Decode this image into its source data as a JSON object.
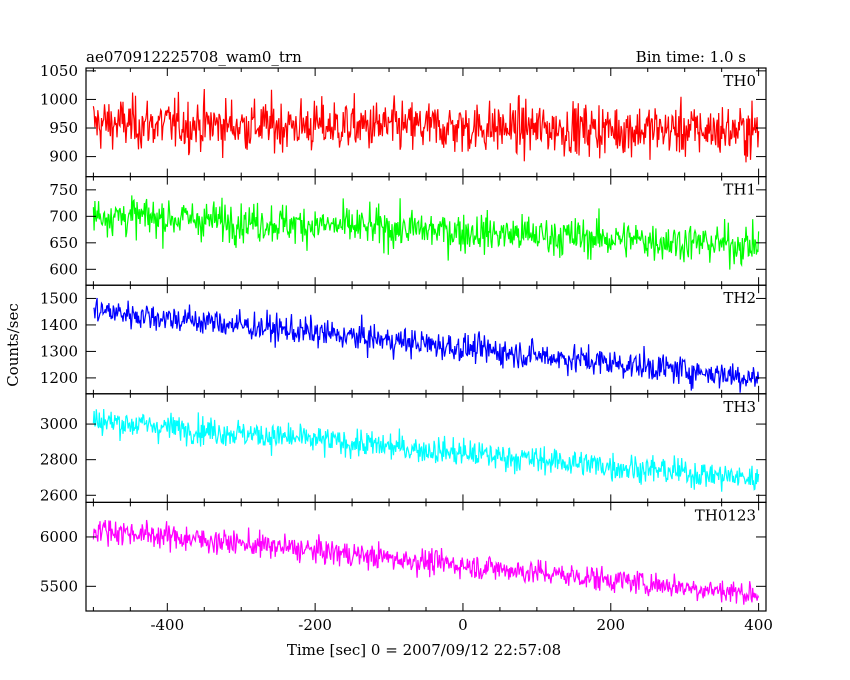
{
  "header": {
    "title": "ae070912225708_wam0_trn",
    "bin_time": "Bin time: 1.0 s"
  },
  "axes": {
    "xlabel": "Time [sec] 0 = 2007/09/12 22:57:08",
    "ylabel": "Counts/sec",
    "xlim": [
      -510,
      410
    ],
    "x_ticks": [
      "-400",
      "-200",
      "0",
      "200",
      "400"
    ]
  },
  "chart_data": {
    "type": "line",
    "title": "ae070912225708_wam0_trn",
    "xlabel": "Time [sec] 0 = 2007/09/12 22:57:08",
    "ylabel": "Counts/sec",
    "bin_time_s": 1.0,
    "x_range": [
      -500,
      400
    ],
    "series": [
      {
        "name": "TH0",
        "color": "#ff0000",
        "ylim": [
          865,
          1055
        ],
        "y_ticks": [
          900,
          950,
          1000,
          1050
        ],
        "trend_start": 958,
        "trend_end": 945,
        "noise_sd": 32
      },
      {
        "name": "TH1",
        "color": "#00ff00",
        "ylim": [
          570,
          775
        ],
        "y_ticks": [
          600,
          650,
          700,
          750
        ],
        "trend_start": 703,
        "trend_end": 645,
        "noise_sd": 26
      },
      {
        "name": "TH2",
        "color": "#0000ff",
        "ylim": [
          1140,
          1550
        ],
        "y_ticks": [
          1200,
          1300,
          1400,
          1500
        ],
        "trend_start": 1455,
        "trend_end": 1200,
        "noise_sd": 38
      },
      {
        "name": "TH3",
        "color": "#00ffff",
        "ylim": [
          2560,
          3170
        ],
        "y_ticks": [
          2600,
          2800,
          3000
        ],
        "trend_start": 3020,
        "trend_end": 2690,
        "noise_sd": 55
      },
      {
        "name": "TH0123",
        "color": "#ff00ff",
        "ylim": [
          5250,
          6350
        ],
        "y_ticks": [
          5500,
          6000
        ],
        "trend_start": 6080,
        "trend_end": 5420,
        "noise_sd": 90
      }
    ]
  }
}
